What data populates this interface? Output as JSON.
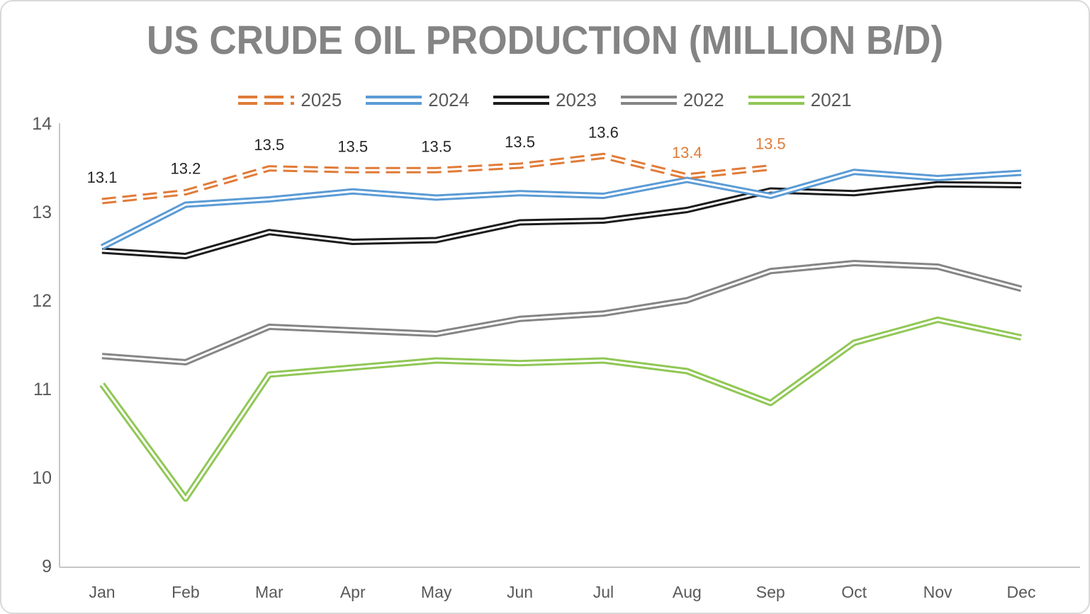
{
  "title": "US CRUDE OIL PRODUCTION (MILLION B/D)",
  "colors": {
    "title_text": "#848484",
    "axis_line": "#C6C6C6",
    "tick_text": "#595959",
    "data_label_dark": "#262626",
    "data_label_orange": "#E07B38",
    "series_2025": "#E07B38",
    "series_2024": "#5B9BD5",
    "series_2023": "#1C1C1C",
    "series_2022": "#858585",
    "series_2021": "#90C755"
  },
  "legend": {
    "position": "top",
    "items": [
      "2025",
      "2024",
      "2023",
      "2022",
      "2021"
    ]
  },
  "chart_data": {
    "type": "line",
    "title": "US CRUDE OIL PRODUCTION (MILLION B/D)",
    "xlabel": "",
    "ylabel": "",
    "categories": [
      "Jan",
      "Feb",
      "Mar",
      "Apr",
      "May",
      "Jun",
      "Jul",
      "Aug",
      "Sep",
      "Oct",
      "Nov",
      "Dec"
    ],
    "y_ticks": [
      14,
      13,
      12,
      11,
      10,
      9
    ],
    "ylim": [
      9,
      14
    ],
    "grid": false,
    "legend_position": "top-center",
    "line_style": "double-line (colored stroke with white core)",
    "series": [
      {
        "name": "2025",
        "color": "#E07B38",
        "dashed": true,
        "values": [
          13.12,
          13.22,
          13.49,
          13.47,
          13.47,
          13.52,
          13.63,
          13.4,
          13.5
        ],
        "data_labels": [
          "13.1",
          "13.2",
          "13.5",
          "13.5",
          "13.5",
          "13.5",
          "13.6",
          "13.4",
          "13.5"
        ],
        "data_label_colors": [
          "#262626",
          "#262626",
          "#262626",
          "#262626",
          "#262626",
          "#262626",
          "#262626",
          "#E07B38",
          "#E07B38"
        ]
      },
      {
        "name": "2024",
        "color": "#5B9BD5",
        "dashed": false,
        "values": [
          12.6,
          13.08,
          13.14,
          13.23,
          13.16,
          13.21,
          13.18,
          13.36,
          13.18,
          13.45,
          13.38,
          13.44
        ],
        "data_labels": [],
        "data_label_colors": []
      },
      {
        "name": "2023",
        "color": "#1C1C1C",
        "dashed": false,
        "values": [
          12.56,
          12.5,
          12.77,
          12.66,
          12.68,
          12.88,
          12.9,
          13.02,
          13.24,
          13.21,
          13.31,
          13.3
        ],
        "data_labels": [],
        "data_label_colors": []
      },
      {
        "name": "2022",
        "color": "#858585",
        "dashed": false,
        "values": [
          11.37,
          11.3,
          11.7,
          11.66,
          11.62,
          11.79,
          11.85,
          12.0,
          12.33,
          12.42,
          12.38,
          12.13
        ],
        "data_labels": [],
        "data_label_colors": []
      },
      {
        "name": "2021",
        "color": "#90C755",
        "dashed": false,
        "values": [
          11.05,
          9.76,
          11.16,
          11.24,
          11.32,
          11.29,
          11.32,
          11.2,
          10.84,
          11.52,
          11.78,
          11.58
        ],
        "data_labels": [],
        "data_label_colors": []
      }
    ]
  }
}
